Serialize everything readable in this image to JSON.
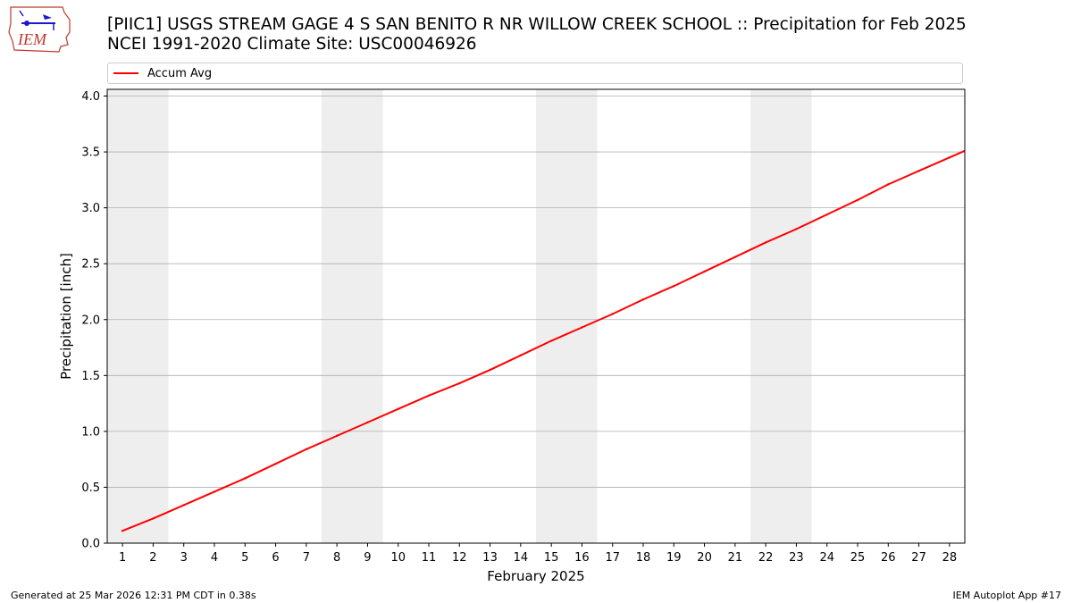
{
  "header": {
    "logo_text": "IEM",
    "title_line1": "[PIIC1] USGS STREAM GAGE 4 S SAN BENITO R NR WILLOW CREEK SCHOOL :: Precipitation for Feb 2025",
    "title_line2": "NCEI 1991-2020 Climate Site: USC00046926"
  },
  "footer": {
    "generated": "Generated at 25 Mar 2026 12:31 PM CDT in 0.38s",
    "app": "IEM Autoplot App #17"
  },
  "colors": {
    "line": "#ff0000",
    "weekend_band": "#eeeeee",
    "grid": "#b0b0b0"
  },
  "chart_data": {
    "type": "line",
    "title": "[PIIC1] USGS STREAM GAGE 4 S SAN BENITO R NR WILLOW CREEK SCHOOL :: Precipitation for Feb 2025",
    "subtitle": "NCEI 1991-2020 Climate Site: USC00046926",
    "xlabel": "February 2025",
    "ylabel": "Precipitation [inch]",
    "xlim": [
      0.5,
      28.5
    ],
    "ylim": [
      0.0,
      4.06
    ],
    "grid": "y",
    "legend_position": "top",
    "x": [
      1,
      2,
      3,
      4,
      5,
      6,
      7,
      8,
      9,
      10,
      11,
      12,
      13,
      14,
      15,
      16,
      17,
      18,
      19,
      20,
      21,
      22,
      23,
      24,
      25,
      26,
      27,
      28
    ],
    "series": [
      {
        "name": "Accum Avg",
        "values": [
          0.11,
          0.22,
          0.34,
          0.46,
          0.58,
          0.71,
          0.84,
          0.96,
          1.08,
          1.2,
          1.32,
          1.43,
          1.55,
          1.68,
          1.81,
          1.93,
          2.05,
          2.18,
          2.3,
          2.43,
          2.56,
          2.69,
          2.81,
          2.94,
          3.07,
          3.21,
          3.33,
          3.45
        ]
      }
    ],
    "weekend_bands": [
      [
        0.5,
        2.5
      ],
      [
        7.5,
        9.5
      ],
      [
        14.5,
        16.5
      ],
      [
        21.5,
        23.5
      ]
    ],
    "x_ticks": [
      1,
      2,
      3,
      4,
      5,
      6,
      7,
      8,
      9,
      10,
      11,
      12,
      13,
      14,
      15,
      16,
      17,
      18,
      19,
      20,
      21,
      22,
      23,
      24,
      25,
      26,
      27,
      28
    ],
    "y_ticks": [
      "0.0",
      "0.5",
      "1.0",
      "1.5",
      "2.0",
      "2.5",
      "3.0",
      "3.5",
      "4.0"
    ]
  }
}
